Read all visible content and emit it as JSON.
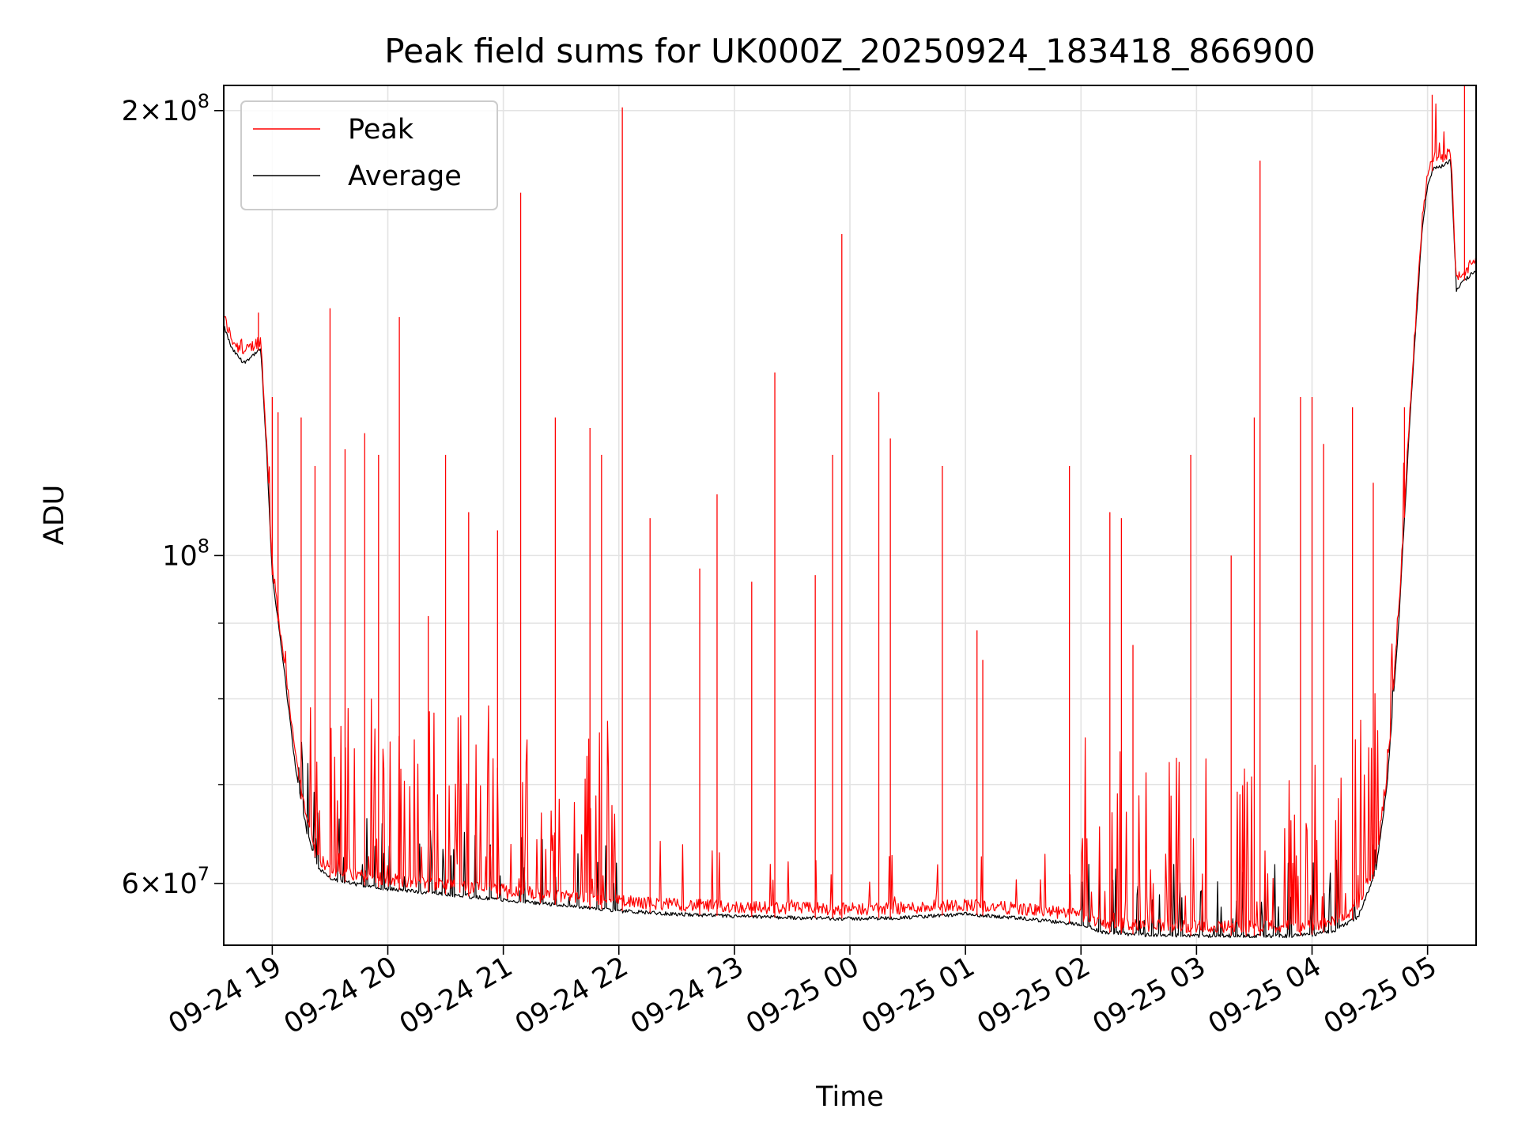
{
  "chart_data": {
    "type": "line",
    "title": "Peak field sums for UK000Z_20250924_183418_866900",
    "xlabel": "Time",
    "ylabel": "ADU",
    "yscale": "log",
    "ylim": [
      54500000,
      208000000
    ],
    "xlim_hours": [
      -0.42,
      10.42
    ],
    "x_ticks": [
      {
        "hour": 0,
        "label": "09-24 19"
      },
      {
        "hour": 1,
        "label": "09-24 20"
      },
      {
        "hour": 2,
        "label": "09-24 21"
      },
      {
        "hour": 3,
        "label": "09-24 22"
      },
      {
        "hour": 4,
        "label": "09-24 23"
      },
      {
        "hour": 5,
        "label": "09-25 00"
      },
      {
        "hour": 6,
        "label": "09-25 01"
      },
      {
        "hour": 7,
        "label": "09-25 02"
      },
      {
        "hour": 8,
        "label": "09-25 03"
      },
      {
        "hour": 9,
        "label": "09-25 04"
      },
      {
        "hour": 10,
        "label": "09-25 05"
      }
    ],
    "y_ticks": [
      {
        "value": 60000000,
        "mantissa": "6",
        "exponent": "7"
      },
      {
        "value": 100000000,
        "mantissa": "",
        "exponent": "8"
      },
      {
        "value": 200000000,
        "mantissa": "2",
        "exponent": "8"
      }
    ],
    "y_minor_ticks": [
      70000000,
      80000000,
      90000000
    ],
    "grid": true,
    "legend_position": "top-left",
    "series": [
      {
        "name": "Average",
        "color": "#000000",
        "x_hours": [
          -0.42,
          -0.35,
          -0.25,
          -0.15,
          -0.1,
          -0.05,
          0.0,
          0.1,
          0.2,
          0.3,
          0.4,
          0.5,
          0.6,
          0.8,
          1.0,
          1.5,
          2.0,
          2.5,
          3.0,
          3.5,
          4.0,
          4.5,
          5.0,
          5.5,
          6.0,
          6.5,
          7.0,
          7.2,
          7.5,
          8.0,
          8.5,
          8.8,
          9.0,
          9.2,
          9.4,
          9.55,
          9.65,
          9.75,
          9.85,
          9.95,
          10.0,
          10.05,
          10.1,
          10.15,
          10.2,
          10.25,
          10.3,
          10.42
        ],
        "values": [
          143000000,
          138000000,
          135000000,
          137000000,
          138000000,
          118000000,
          97000000,
          84000000,
          72000000,
          65000000,
          61500000,
          60500000,
          60200000,
          59800000,
          59500000,
          59000000,
          58500000,
          58000000,
          57500000,
          57200000,
          57000000,
          56900000,
          56800000,
          56900000,
          57200000,
          56800000,
          56300000,
          55600000,
          55400000,
          55300000,
          55300000,
          55300000,
          55400000,
          55800000,
          57000000,
          61000000,
          70000000,
          90000000,
          125000000,
          165000000,
          178000000,
          183000000,
          183000000,
          184000000,
          185000000,
          151000000,
          153000000,
          156000000
        ]
      },
      {
        "name": "Peak",
        "color": "#ff0000",
        "spikes": [
          {
            "hour": -0.12,
            "value": 146000000
          },
          {
            "hour": 0.0,
            "value": 128000000
          },
          {
            "hour": 0.05,
            "value": 125000000
          },
          {
            "hour": 0.25,
            "value": 124000000
          },
          {
            "hour": 0.37,
            "value": 115000000
          },
          {
            "hour": 0.5,
            "value": 147000000
          },
          {
            "hour": 0.63,
            "value": 118000000
          },
          {
            "hour": 0.8,
            "value": 121000000
          },
          {
            "hour": 0.92,
            "value": 117000000
          },
          {
            "hour": 1.1,
            "value": 145000000
          },
          {
            "hour": 1.35,
            "value": 91000000
          },
          {
            "hour": 1.5,
            "value": 117000000
          },
          {
            "hour": 1.7,
            "value": 107000000
          },
          {
            "hour": 1.95,
            "value": 104000000
          },
          {
            "hour": 2.15,
            "value": 176000000
          },
          {
            "hour": 2.45,
            "value": 124000000
          },
          {
            "hour": 2.75,
            "value": 122000000
          },
          {
            "hour": 2.85,
            "value": 117000000
          },
          {
            "hour": 3.03,
            "value": 201000000
          },
          {
            "hour": 3.27,
            "value": 106000000
          },
          {
            "hour": 3.7,
            "value": 98000000
          },
          {
            "hour": 3.85,
            "value": 110000000
          },
          {
            "hour": 4.15,
            "value": 96000000
          },
          {
            "hour": 4.35,
            "value": 133000000
          },
          {
            "hour": 4.7,
            "value": 97000000
          },
          {
            "hour": 4.85,
            "value": 117000000
          },
          {
            "hour": 4.93,
            "value": 165000000
          },
          {
            "hour": 5.25,
            "value": 129000000
          },
          {
            "hour": 5.35,
            "value": 120000000
          },
          {
            "hour": 5.8,
            "value": 115000000
          },
          {
            "hour": 6.1,
            "value": 89000000
          },
          {
            "hour": 6.15,
            "value": 85000000
          },
          {
            "hour": 6.9,
            "value": 115000000
          },
          {
            "hour": 7.25,
            "value": 107000000
          },
          {
            "hour": 7.35,
            "value": 106000000
          },
          {
            "hour": 7.45,
            "value": 87000000
          },
          {
            "hour": 7.95,
            "value": 117000000
          },
          {
            "hour": 8.3,
            "value": 100000000
          },
          {
            "hour": 8.5,
            "value": 124000000
          },
          {
            "hour": 8.55,
            "value": 185000000
          },
          {
            "hour": 8.9,
            "value": 128000000
          },
          {
            "hour": 9.0,
            "value": 128000000
          },
          {
            "hour": 9.1,
            "value": 119000000
          },
          {
            "hour": 9.35,
            "value": 126000000
          },
          {
            "hour": 9.53,
            "value": 112000000
          },
          {
            "hour": 9.8,
            "value": 126000000
          },
          {
            "hour": 10.04,
            "value": 205000000
          },
          {
            "hour": 10.32,
            "value": 213000000
          }
        ]
      }
    ]
  }
}
